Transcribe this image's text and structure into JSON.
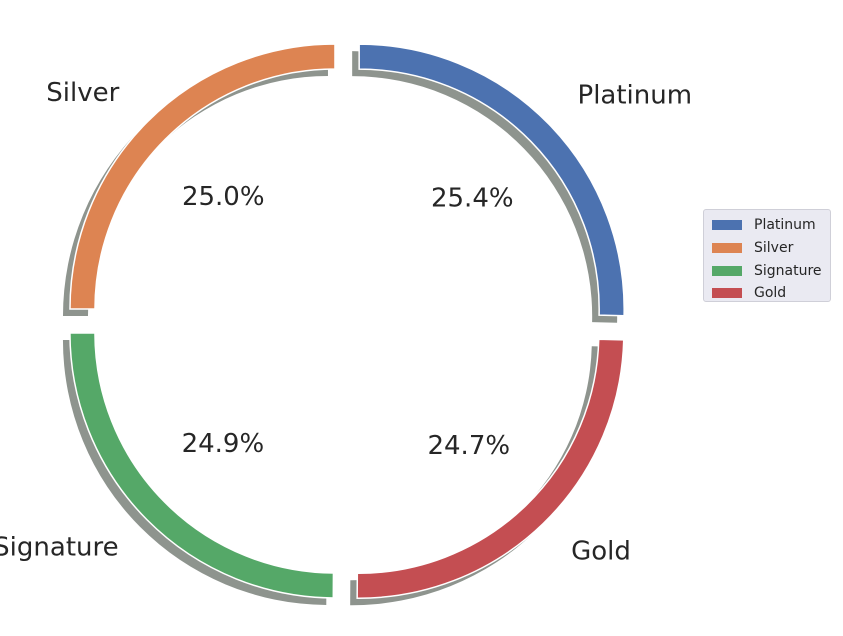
{
  "chart_data": {
    "type": "pie",
    "style": "exploded ring (donut) with shadow",
    "slices": [
      {
        "label": "Platinum",
        "value": 25.4,
        "pct_label": "25.4%",
        "color": "#4c72b0"
      },
      {
        "label": "Gold",
        "value": 24.7,
        "pct_label": "24.7%",
        "color": "#c44e52"
      },
      {
        "label": "Signature",
        "value": 24.9,
        "pct_label": "24.9%",
        "color": "#55a868"
      },
      {
        "label": "Silver",
        "value": 25.0,
        "pct_label": "25.0%",
        "color": "#dd8452"
      }
    ],
    "legend": {
      "position": "right",
      "entries": [
        {
          "label": "Platinum",
          "color": "#4c72b0"
        },
        {
          "label": "Silver",
          "color": "#dd8452"
        },
        {
          "label": "Signature",
          "color": "#55a868"
        },
        {
          "label": "Gold",
          "color": "#c44e52"
        }
      ]
    }
  }
}
